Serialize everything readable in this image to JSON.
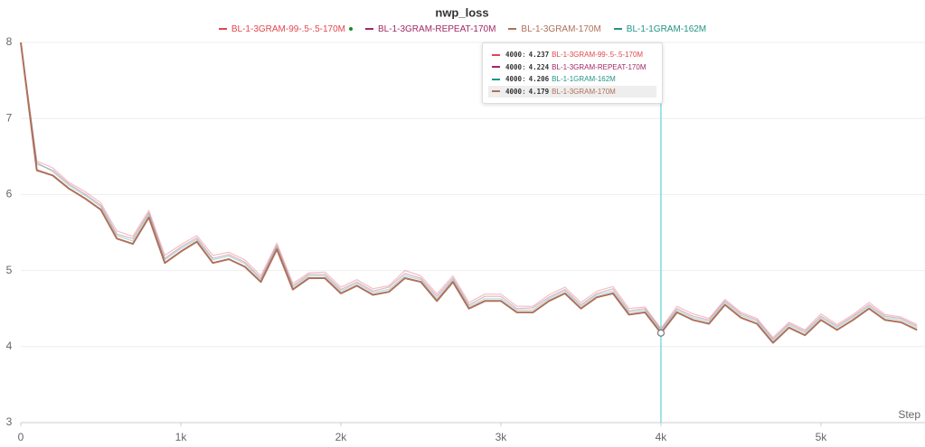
{
  "chart_data": {
    "type": "line",
    "title": "nwp_loss",
    "xlabel": "Step",
    "x": [
      0,
      100,
      200,
      300,
      400,
      500,
      600,
      700,
      800,
      900,
      1000,
      1100,
      1200,
      1300,
      1400,
      1500,
      1600,
      1700,
      1800,
      1900,
      2000,
      2100,
      2200,
      2300,
      2400,
      2500,
      2600,
      2700,
      2800,
      2900,
      3000,
      3100,
      3200,
      3300,
      3400,
      3500,
      3600,
      3700,
      3800,
      3900,
      4000,
      4100,
      4200,
      4300,
      4400,
      4500,
      4600,
      4700,
      4800,
      4900,
      5000,
      5100,
      5200,
      5300,
      5400,
      5500,
      5600
    ],
    "series": [
      {
        "name": "BL-1-3GRAM-99-.5-.5-170M",
        "color": "#e0474c",
        "values": [
          8.0,
          6.44,
          6.35,
          6.16,
          6.04,
          5.89,
          5.52,
          5.45,
          5.79,
          5.2,
          5.34,
          5.46,
          5.2,
          5.24,
          5.14,
          4.93,
          5.36,
          4.83,
          4.97,
          4.98,
          4.78,
          4.88,
          4.76,
          4.8,
          5.0,
          4.93,
          4.69,
          4.93,
          4.58,
          4.69,
          4.69,
          4.53,
          4.53,
          4.68,
          4.78,
          4.58,
          4.73,
          4.79,
          4.5,
          4.52,
          4.237,
          4.53,
          4.43,
          4.37,
          4.62,
          4.45,
          4.37,
          4.12,
          4.32,
          4.22,
          4.43,
          4.29,
          4.42,
          4.58,
          4.42,
          4.39,
          4.29
        ]
      },
      {
        "name": "BL-1-3GRAM-REPEAT-170M",
        "color": "#a12864",
        "values": [
          8.0,
          6.4,
          6.32,
          6.14,
          6.01,
          5.86,
          5.48,
          5.42,
          5.76,
          5.16,
          5.31,
          5.43,
          5.16,
          5.21,
          5.11,
          4.9,
          5.33,
          4.8,
          4.95,
          4.95,
          4.75,
          4.85,
          4.73,
          4.78,
          4.96,
          4.9,
          4.66,
          4.9,
          4.55,
          4.66,
          4.66,
          4.5,
          4.51,
          4.65,
          4.75,
          4.55,
          4.7,
          4.76,
          4.47,
          4.5,
          4.224,
          4.5,
          4.4,
          4.35,
          4.6,
          4.43,
          4.35,
          4.1,
          4.3,
          4.2,
          4.4,
          4.27,
          4.4,
          4.55,
          4.4,
          4.37,
          4.27
        ]
      },
      {
        "name": "BL-1-3GRAM-170M",
        "color": "#b0705a",
        "values": [
          8.0,
          6.32,
          6.25,
          6.08,
          5.95,
          5.8,
          5.42,
          5.35,
          5.7,
          5.1,
          5.25,
          5.38,
          5.1,
          5.15,
          5.05,
          4.85,
          5.28,
          4.75,
          4.9,
          4.9,
          4.7,
          4.8,
          4.68,
          4.72,
          4.9,
          4.85,
          4.6,
          4.85,
          4.5,
          4.6,
          4.6,
          4.45,
          4.45,
          4.6,
          4.7,
          4.5,
          4.65,
          4.7,
          4.42,
          4.45,
          4.179,
          4.45,
          4.35,
          4.3,
          4.55,
          4.38,
          4.3,
          4.05,
          4.25,
          4.15,
          4.35,
          4.22,
          4.35,
          4.5,
          4.35,
          4.32,
          4.22
        ]
      },
      {
        "name": "BL-1-1GRAM-162M",
        "color": "#229487",
        "values": [
          8.0,
          6.42,
          6.3,
          6.12,
          5.99,
          5.84,
          5.46,
          5.39,
          5.74,
          5.14,
          5.29,
          5.41,
          5.14,
          5.19,
          5.09,
          4.88,
          5.31,
          4.78,
          4.93,
          4.93,
          4.73,
          4.83,
          4.71,
          4.75,
          4.93,
          4.88,
          4.63,
          4.88,
          4.53,
          4.63,
          4.63,
          4.48,
          4.48,
          4.63,
          4.73,
          4.53,
          4.68,
          4.73,
          4.45,
          4.48,
          4.206,
          4.48,
          4.38,
          4.33,
          4.58,
          4.41,
          4.33,
          4.08,
          4.28,
          4.18,
          4.38,
          4.25,
          4.38,
          4.53,
          4.38,
          4.35,
          4.25
        ]
      }
    ],
    "xlim": [
      0,
      5650
    ],
    "ylim": [
      3,
      8
    ],
    "xticks": [
      0,
      {
        "value": 1000,
        "label": "1k"
      },
      {
        "value": 2000,
        "label": "2k"
      },
      {
        "value": 3000,
        "label": "3k"
      },
      {
        "value": 4000,
        "label": "4k"
      },
      {
        "value": 5000,
        "label": "5k"
      }
    ],
    "yticks": [
      3,
      4,
      5,
      6,
      7,
      8
    ],
    "grid": true
  }
}
